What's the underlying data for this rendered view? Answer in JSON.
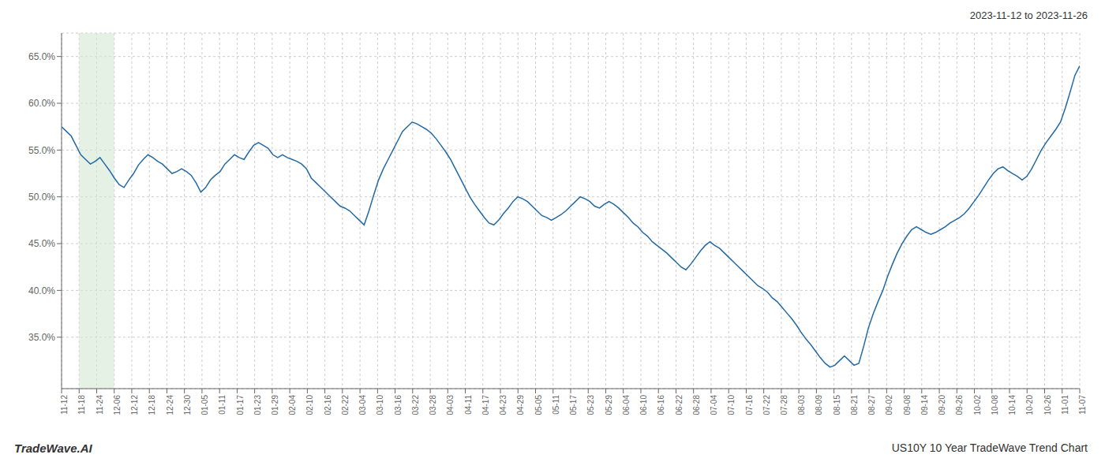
{
  "chart_data": {
    "type": "line",
    "title": "US10Y 10 Year TradeWave Trend Chart",
    "subtitle": "2023-11-12 to 2023-11-26",
    "annotations": [
      "TradeWave.AI"
    ],
    "color": "#2369a4",
    "grid": true,
    "xlim": [
      0,
      212
    ],
    "ylim": [
      0.295,
      0.675
    ],
    "yticks": [
      {
        "value": 0.35,
        "label": "35.0%"
      },
      {
        "value": 0.4,
        "label": "40.0%"
      },
      {
        "value": 0.45,
        "label": "45.0%"
      },
      {
        "value": 0.5,
        "label": "50.0%"
      },
      {
        "value": 0.55,
        "label": "55.0%"
      },
      {
        "value": 0.6,
        "label": "60.0%"
      },
      {
        "value": 0.65,
        "label": "65.0%"
      }
    ],
    "xticks": [
      {
        "value": 0,
        "label": "11-12"
      },
      {
        "value": 3.6551724138,
        "label": "11-18"
      },
      {
        "value": 7.3103448276,
        "label": "11-24"
      },
      {
        "value": 10.9655172414,
        "label": "12-06"
      },
      {
        "value": 14.6206896552,
        "label": "12-12"
      },
      {
        "value": 18.275862069,
        "label": "12-18"
      },
      {
        "value": 21.9310344828,
        "label": "12-24"
      },
      {
        "value": 25.5862068966,
        "label": "12-30"
      },
      {
        "value": 29.2413793103,
        "label": "01-05"
      },
      {
        "value": 32.8965517241,
        "label": "01-11"
      },
      {
        "value": 36.5517241379,
        "label": "01-17"
      },
      {
        "value": 40.2068965517,
        "label": "01-23"
      },
      {
        "value": 43.8620689655,
        "label": "01-29"
      },
      {
        "value": 47.5172413793,
        "label": "02-04"
      },
      {
        "value": 51.1724137931,
        "label": "02-10"
      },
      {
        "value": 54.8275862069,
        "label": "02-16"
      },
      {
        "value": 58.4827586207,
        "label": "02-22"
      },
      {
        "value": 62.1379310345,
        "label": "03-04"
      },
      {
        "value": 65.7931034483,
        "label": "03-10"
      },
      {
        "value": 69.4482758621,
        "label": "03-16"
      },
      {
        "value": 73.1034482759,
        "label": "03-22"
      },
      {
        "value": 76.7586206897,
        "label": "03-28"
      },
      {
        "value": 80.4137931034,
        "label": "04-03"
      },
      {
        "value": 84.0689655172,
        "label": "04-11"
      },
      {
        "value": 87.724137931,
        "label": "04-17"
      },
      {
        "value": 91.3793103448,
        "label": "04-23"
      },
      {
        "value": 95.0344827586,
        "label": "04-29"
      },
      {
        "value": 98.6896551724,
        "label": "05-05"
      },
      {
        "value": 102.3448275862,
        "label": "05-11"
      },
      {
        "value": 106,
        "label": "05-17"
      },
      {
        "value": 109.6551724138,
        "label": "05-23"
      },
      {
        "value": 113.3103448276,
        "label": "05-29"
      },
      {
        "value": 116.9655172414,
        "label": "06-04"
      },
      {
        "value": 120.6206896552,
        "label": "06-10"
      },
      {
        "value": 124.275862069,
        "label": "06-16"
      },
      {
        "value": 127.9310344828,
        "label": "06-22"
      },
      {
        "value": 131.5862068966,
        "label": "06-28"
      },
      {
        "value": 135.2413793103,
        "label": "07-04"
      },
      {
        "value": 138.8965517241,
        "label": "07-10"
      },
      {
        "value": 142.5517241379,
        "label": "07-16"
      },
      {
        "value": 146.2068965517,
        "label": "07-22"
      },
      {
        "value": 149.8620689655,
        "label": "07-28"
      },
      {
        "value": 153.5172413793,
        "label": "08-03"
      },
      {
        "value": 157.1724137931,
        "label": "08-09"
      },
      {
        "value": 160.8275862069,
        "label": "08-15"
      },
      {
        "value": 164.4827586207,
        "label": "08-21"
      },
      {
        "value": 168.1379310345,
        "label": "08-27"
      },
      {
        "value": 171.7931034483,
        "label": "09-02"
      },
      {
        "value": 175.4482758621,
        "label": "09-08"
      },
      {
        "value": 179.1034482759,
        "label": "09-14"
      },
      {
        "value": 182.7586206897,
        "label": "09-20"
      },
      {
        "value": 186.4137931034,
        "label": "09-26"
      },
      {
        "value": 190.0689655172,
        "label": "10-02"
      },
      {
        "value": 193.724137931,
        "label": "10-08"
      },
      {
        "value": 197.3793103448,
        "label": "10-14"
      },
      {
        "value": 201.0344827586,
        "label": "10-20"
      },
      {
        "value": 204.6896551724,
        "label": "10-26"
      },
      {
        "value": 208.3448275862,
        "label": "11-01"
      },
      {
        "value": 212,
        "label": "11-07"
      }
    ],
    "highlight": {
      "x": [
        3.6551724138,
        10.9655172414
      ],
      "color": "#d5e8d4"
    },
    "values": [
      0.575,
      0.57,
      0.565,
      0.555,
      0.545,
      0.54,
      0.535,
      0.538,
      0.542,
      0.535,
      0.528,
      0.52,
      0.513,
      0.51,
      0.518,
      0.525,
      0.534,
      0.54,
      0.545,
      0.542,
      0.538,
      0.535,
      0.53,
      0.525,
      0.527,
      0.53,
      0.527,
      0.523,
      0.515,
      0.505,
      0.51,
      0.518,
      0.523,
      0.527,
      0.535,
      0.54,
      0.545,
      0.542,
      0.54,
      0.548,
      0.555,
      0.558,
      0.555,
      0.552,
      0.545,
      0.542,
      0.545,
      0.542,
      0.54,
      0.538,
      0.535,
      0.53,
      0.52,
      0.515,
      0.51,
      0.505,
      0.5,
      0.495,
      0.49,
      0.488,
      0.485,
      0.48,
      0.475,
      0.47,
      0.485,
      0.502,
      0.518,
      0.53,
      0.54,
      0.55,
      0.56,
      0.57,
      0.575,
      0.58,
      0.578,
      0.575,
      0.572,
      0.568,
      0.562,
      0.555,
      0.548,
      0.54,
      0.53,
      0.52,
      0.51,
      0.5,
      0.492,
      0.485,
      0.478,
      0.472,
      0.47,
      0.475,
      0.482,
      0.488,
      0.495,
      0.5,
      0.498,
      0.495,
      0.49,
      0.485,
      0.48,
      0.478,
      0.475,
      0.478,
      0.481,
      0.485,
      0.49,
      0.495,
      0.5,
      0.498,
      0.495,
      0.49,
      0.488,
      0.492,
      0.495,
      0.492,
      0.488,
      0.483,
      0.478,
      0.472,
      0.468,
      0.462,
      0.458,
      0.452,
      0.448,
      0.444,
      0.44,
      0.435,
      0.43,
      0.425,
      0.422,
      0.428,
      0.435,
      0.442,
      0.448,
      0.452,
      0.448,
      0.445,
      0.44,
      0.435,
      0.43,
      0.425,
      0.42,
      0.415,
      0.41,
      0.405,
      0.402,
      0.398,
      0.392,
      0.388,
      0.382,
      0.376,
      0.37,
      0.363,
      0.355,
      0.348,
      0.342,
      0.335,
      0.328,
      0.322,
      0.318,
      0.32,
      0.325,
      0.33,
      0.325,
      0.32,
      0.322,
      0.34,
      0.36,
      0.375,
      0.388,
      0.4,
      0.415,
      0.428,
      0.44,
      0.45,
      0.458,
      0.465,
      0.468,
      0.465,
      0.462,
      0.46,
      0.462,
      0.465,
      0.468,
      0.472,
      0.475,
      0.478,
      0.482,
      0.488,
      0.495,
      0.502,
      0.51,
      0.518,
      0.525,
      0.53,
      0.532,
      0.528,
      0.525,
      0.522,
      0.518,
      0.522,
      0.53,
      0.54,
      0.55,
      0.558,
      0.565,
      0.572,
      0.58,
      0.595,
      0.612,
      0.63,
      0.64
    ]
  }
}
